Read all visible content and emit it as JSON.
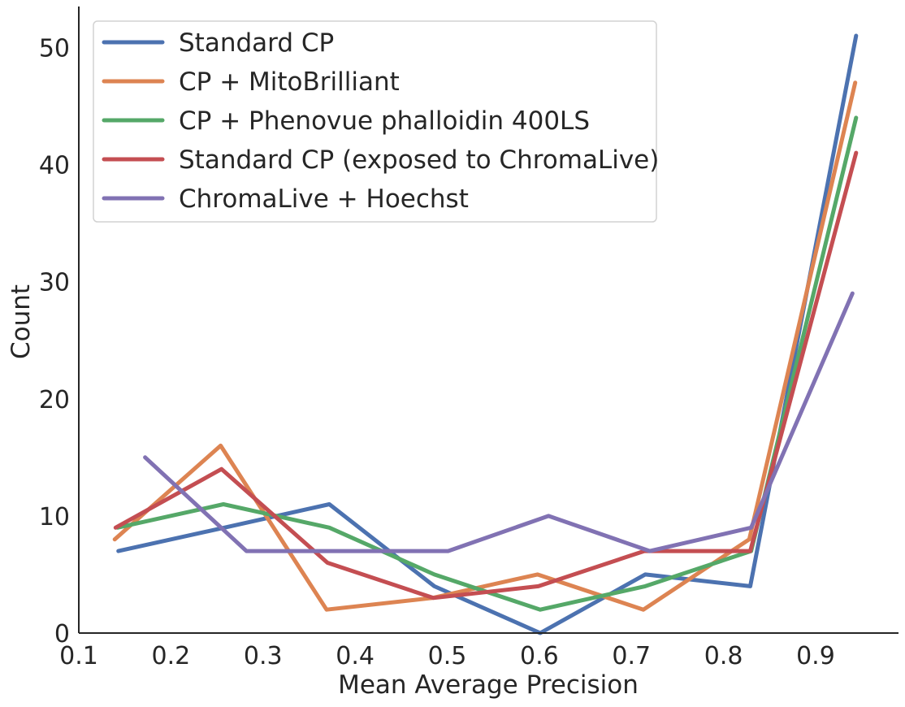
{
  "chart_data": {
    "type": "line",
    "xlabel": "Mean Average Precision",
    "ylabel": "Count",
    "xlim": [
      0.1,
      0.99
    ],
    "ylim": [
      0,
      53.5
    ],
    "x_ticks": [
      "0.1",
      "0.2",
      "0.3",
      "0.4",
      "0.5",
      "0.6",
      "0.7",
      "0.8",
      "0.9"
    ],
    "y_ticks": [
      "0",
      "10",
      "20",
      "30",
      "40",
      "50"
    ],
    "grid": false,
    "legend_position": "top-left",
    "series": [
      {
        "name": "Standard CP",
        "color": "#4c72b0",
        "points": [
          [
            0.143,
            7
          ],
          [
            0.258,
            9
          ],
          [
            0.372,
            11
          ],
          [
            0.486,
            4
          ],
          [
            0.601,
            0
          ],
          [
            0.715,
            5
          ],
          [
            0.829,
            4
          ],
          [
            0.944,
            51
          ]
        ]
      },
      {
        "name": "CP + MitoBrilliant",
        "color": "#dd8452",
        "points": [
          [
            0.139,
            8
          ],
          [
            0.254,
            16
          ],
          [
            0.369,
            2
          ],
          [
            0.484,
            3
          ],
          [
            0.598,
            5
          ],
          [
            0.713,
            2
          ],
          [
            0.828,
            8
          ],
          [
            0.943,
            47
          ]
        ]
      },
      {
        "name": "CP + Phenovue phalloidin 400LS",
        "color": "#55a868",
        "points": [
          [
            0.142,
            9
          ],
          [
            0.257,
            11
          ],
          [
            0.372,
            9
          ],
          [
            0.486,
            5
          ],
          [
            0.601,
            2
          ],
          [
            0.715,
            4
          ],
          [
            0.83,
            7
          ],
          [
            0.944,
            44
          ]
        ]
      },
      {
        "name": "Standard CP (exposed to ChromaLive)",
        "color": "#c44e52",
        "points": [
          [
            0.14,
            9
          ],
          [
            0.255,
            14
          ],
          [
            0.37,
            6
          ],
          [
            0.485,
            3
          ],
          [
            0.599,
            4
          ],
          [
            0.714,
            7
          ],
          [
            0.829,
            7
          ],
          [
            0.944,
            41
          ]
        ]
      },
      {
        "name": "ChromaLive + Hoechst",
        "color": "#8172b3",
        "points": [
          [
            0.172,
            15
          ],
          [
            0.282,
            7
          ],
          [
            0.391,
            7
          ],
          [
            0.501,
            7
          ],
          [
            0.61,
            10
          ],
          [
            0.72,
            7
          ],
          [
            0.83,
            9
          ],
          [
            0.94,
            29
          ]
        ]
      }
    ]
  }
}
